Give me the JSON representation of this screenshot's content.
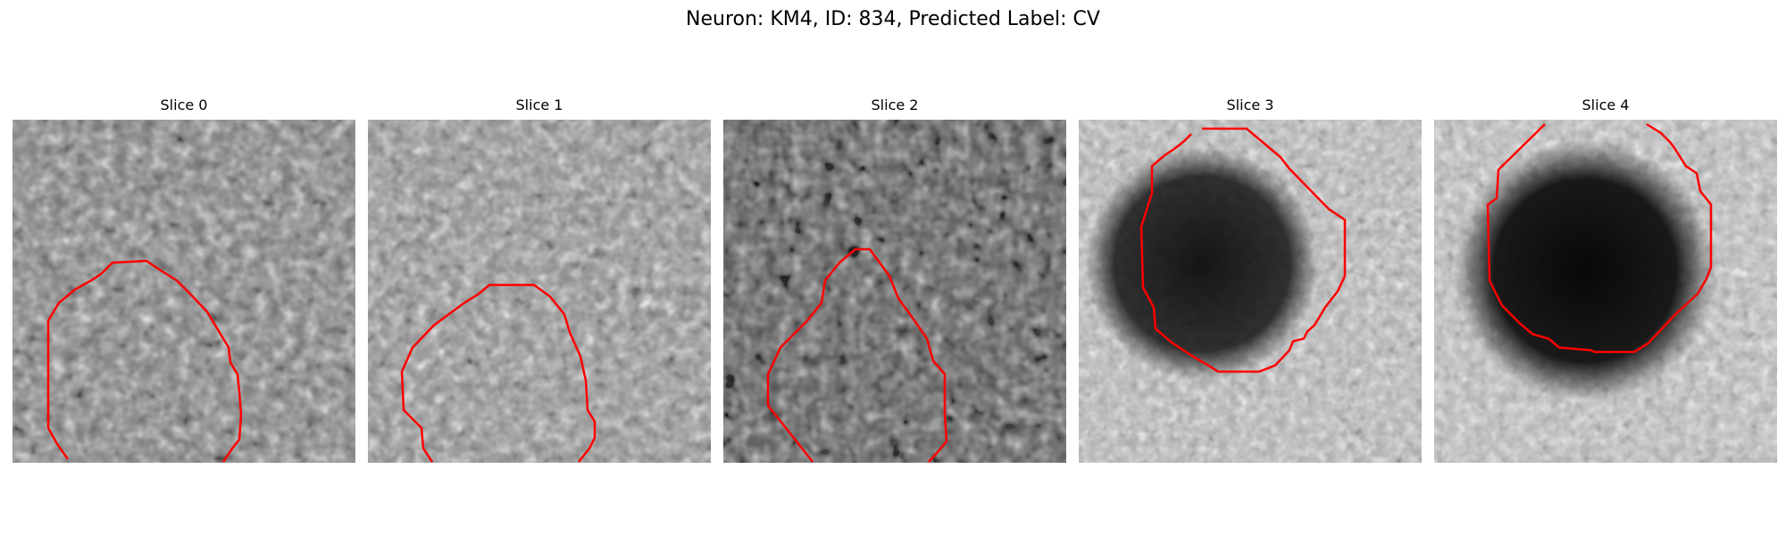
{
  "figure": {
    "title": "Neuron: KM4, ID: 834, Predicted Label: CV"
  },
  "panels": [
    {
      "label": "Slice 0"
    },
    {
      "label": "Slice 1"
    },
    {
      "label": "Slice 2"
    },
    {
      "label": "Slice 3"
    },
    {
      "label": "Slice 4"
    }
  ],
  "colors": {
    "contour": "#ff0000",
    "background": "#ffffff",
    "image_palette": "grayscale"
  }
}
